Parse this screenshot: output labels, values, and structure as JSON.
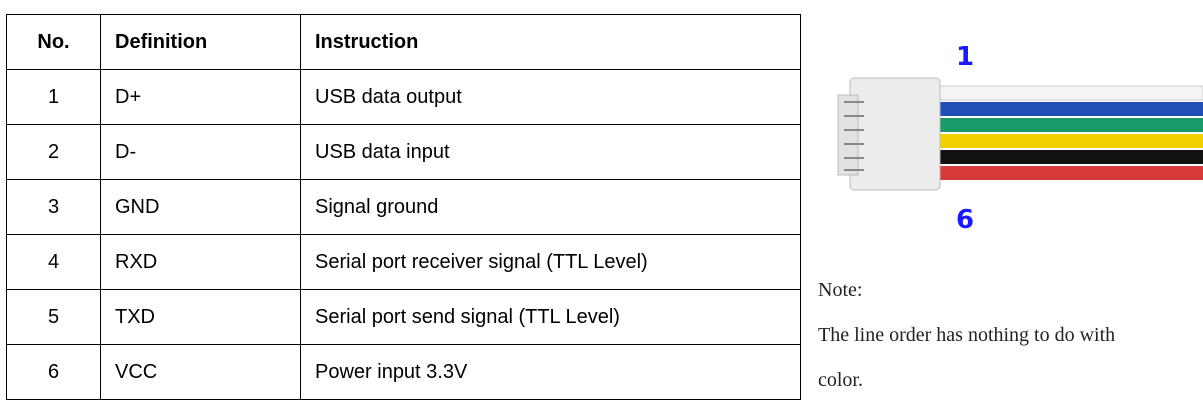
{
  "table": {
    "header": [
      "No.",
      "Definition",
      "Instruction"
    ],
    "rows": [
      [
        "1",
        "D+",
        "USB data output"
      ],
      [
        "2",
        "D-",
        "USB data input"
      ],
      [
        "3",
        "GND",
        "Signal ground"
      ],
      [
        "4",
        "RXD",
        "Serial port receiver signal (TTL Level)"
      ],
      [
        "5",
        "TXD",
        "Serial port send signal (TTL Level)"
      ],
      [
        "6",
        "VCC",
        "Power input 3.3V"
      ]
    ]
  },
  "image": {
    "top_label": "1",
    "bottom_label": "6"
  },
  "note": {
    "title": "Note:",
    "text": "The line order has nothing to do with color."
  }
}
